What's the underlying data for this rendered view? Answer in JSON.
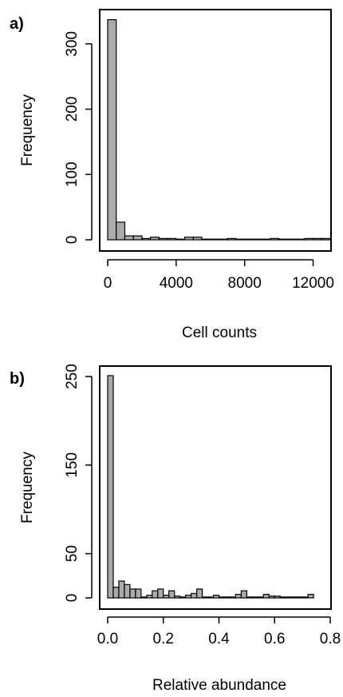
{
  "chart_data": [
    {
      "type": "bar",
      "panel_label": "a)",
      "xlabel": "Cell counts",
      "ylabel": "Frequency",
      "xlim": [
        0,
        13000
      ],
      "ylim": [
        0,
        350
      ],
      "xticks": [
        0,
        4000,
        8000,
        12000
      ],
      "xtick_labels": [
        "0",
        "4000",
        "8000",
        "12000"
      ],
      "yticks": [
        0,
        100,
        200,
        300
      ],
      "ytick_labels": [
        "0",
        "100",
        "200",
        "300"
      ],
      "bin_width": 500,
      "bin_edges_start": 0,
      "values": [
        337,
        27,
        6,
        6,
        2,
        4,
        2,
        2,
        1,
        4,
        4,
        1,
        1,
        1,
        2,
        1,
        1,
        1,
        1,
        2,
        1,
        1,
        1,
        2,
        2,
        2
      ],
      "bar_color": "#aaaaaa",
      "grid": false
    },
    {
      "type": "bar",
      "panel_label": "b)",
      "xlabel": "Relative abundance",
      "ylabel": "Frequency",
      "xlim": [
        0,
        0.8
      ],
      "ylim": [
        0,
        260
      ],
      "xticks": [
        0,
        0.2,
        0.4,
        0.6,
        0.8
      ],
      "xtick_labels": [
        "0.0",
        "0.2",
        "0.4",
        "0.6",
        "0.8"
      ],
      "yticks": [
        0,
        50,
        150,
        250
      ],
      "ytick_labels": [
        "0",
        "50",
        "150",
        "250"
      ],
      "bin_width": 0.02,
      "bin_edges_start": 0,
      "values": [
        251,
        12,
        19,
        15,
        10,
        10,
        1,
        3,
        8,
        10,
        3,
        8,
        2,
        1,
        3,
        5,
        10,
        1,
        1,
        3,
        1,
        1,
        1,
        4,
        8,
        1,
        1,
        1,
        4,
        2,
        2,
        1,
        1,
        1,
        1,
        1,
        4
      ],
      "bar_color": "#aaaaaa",
      "grid": false
    }
  ]
}
